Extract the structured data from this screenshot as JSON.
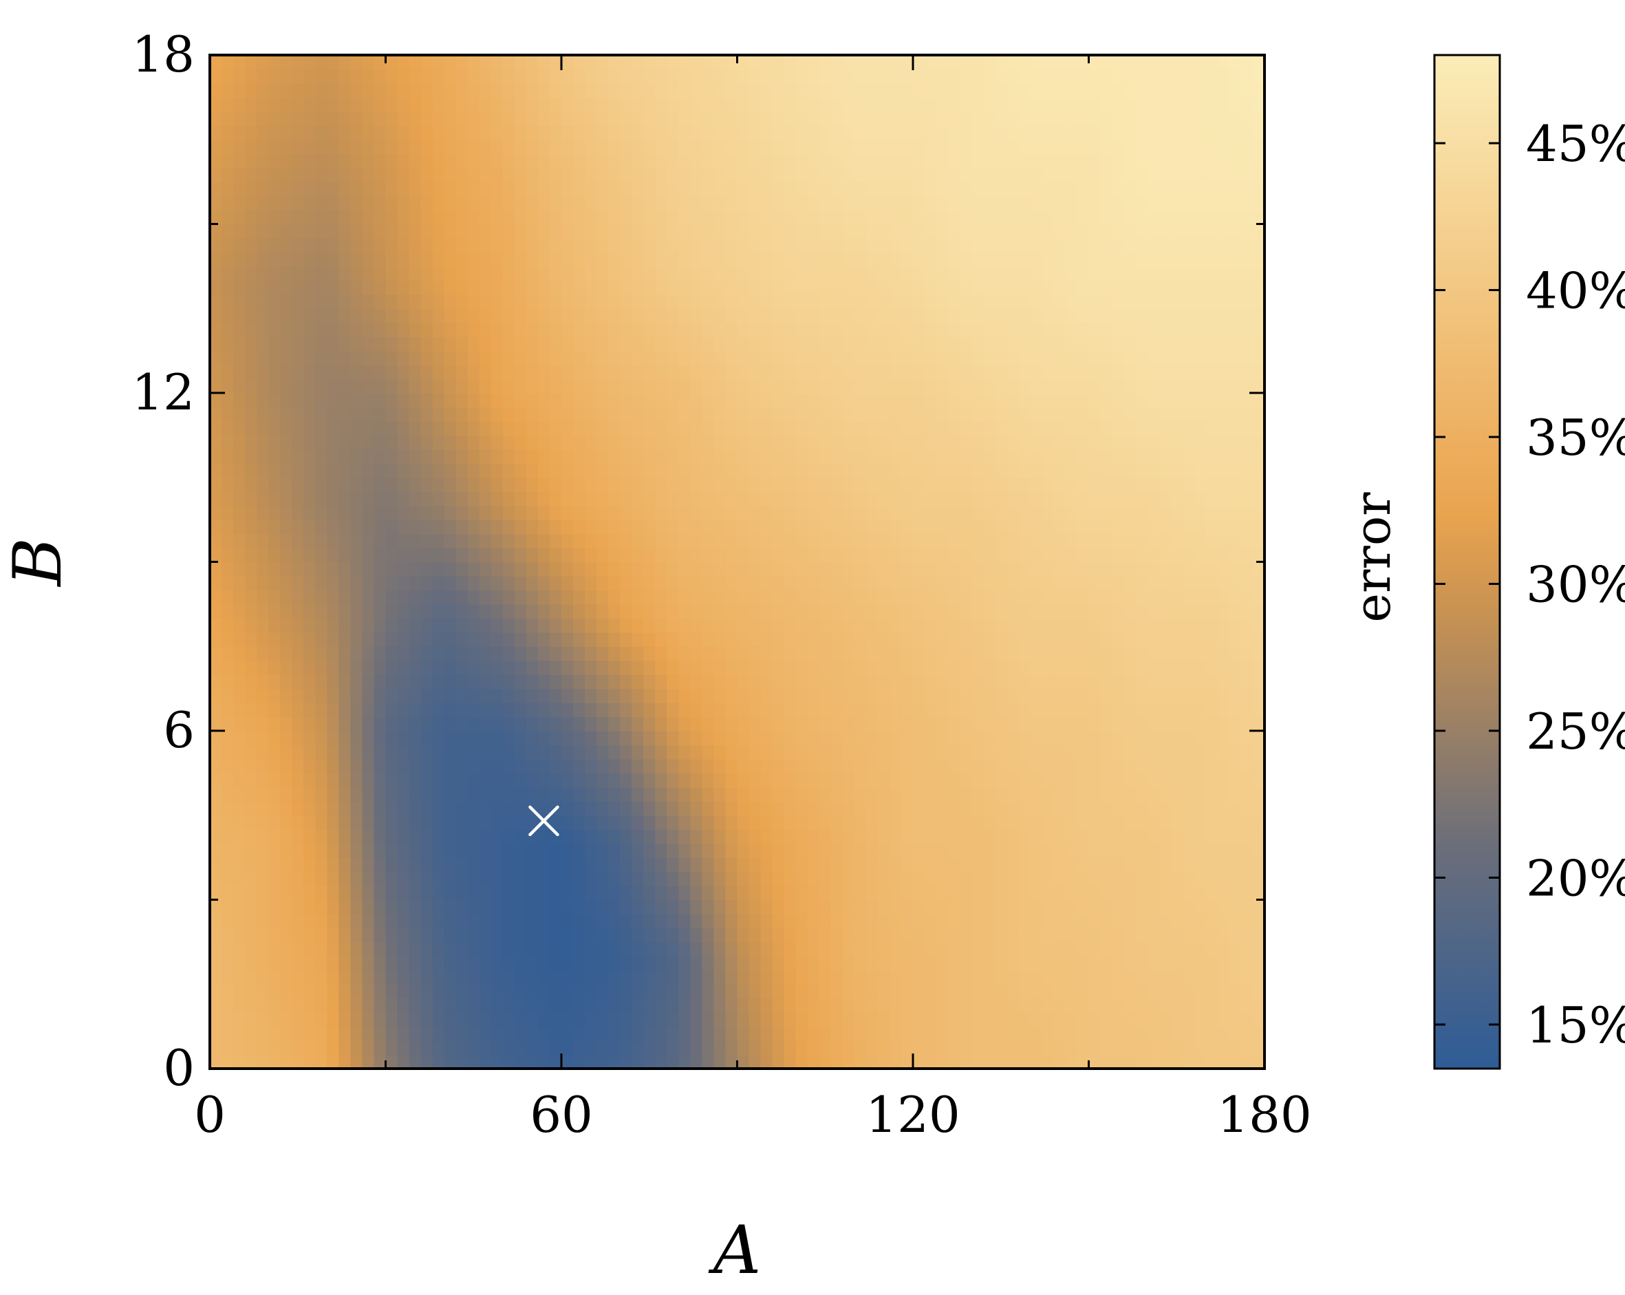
{
  "chart_data": {
    "type": "heatmap",
    "title": "",
    "xlabel": "A",
    "ylabel": "B",
    "xlim": [
      0,
      180
    ],
    "ylim": [
      0,
      18
    ],
    "x_ticks": [
      0,
      60,
      120,
      180
    ],
    "x_tick_labels": [
      "0",
      "60",
      "120",
      "180"
    ],
    "y_ticks": [
      0,
      6,
      12,
      18
    ],
    "y_tick_labels": [
      "0",
      "6",
      "12",
      "18"
    ],
    "x_minor_ticks": [
      30,
      90,
      150
    ],
    "y_minor_ticks": [
      3,
      9,
      15
    ],
    "grid": false,
    "colorbar": {
      "label": "error",
      "range": [
        13.5,
        48
      ],
      "ticks": [
        15,
        20,
        25,
        30,
        35,
        40,
        45
      ],
      "tick_labels": [
        "15%",
        "20%",
        "25%",
        "30%",
        "35%",
        "40%",
        "45%"
      ],
      "colors": {
        "low": "#2e5c97",
        "mid_low": "#6b6e7a",
        "mid": "#c89252",
        "mid_high": "#eaa44f",
        "high": "#fbecb8"
      }
    },
    "marker": {
      "shape": "x",
      "color": "#ffffff",
      "x": 57,
      "y": 4.4
    },
    "values_description_hint": "error field: low (~14%) in band from A≈30-90 at B≈0-8, rising to ~46% at high A and B",
    "grid_x": [
      0,
      10,
      20,
      30,
      40,
      50,
      60,
      70,
      80,
      90,
      100,
      110,
      120,
      130,
      140,
      150,
      160,
      170,
      180
    ],
    "grid_y": [
      0,
      2,
      4,
      6,
      8,
      10,
      12,
      14,
      16,
      18
    ],
    "values": [
      [
        37,
        36,
        34,
        24,
        18,
        16,
        15,
        16,
        19,
        26,
        32,
        35,
        37,
        38,
        38,
        39,
        39,
        40,
        40
      ],
      [
        37,
        35,
        33,
        22,
        17,
        15,
        14,
        15,
        18,
        28,
        33,
        36,
        37,
        38,
        39,
        39,
        40,
        40,
        41
      ],
      [
        36,
        35,
        31,
        20,
        16,
        15,
        14,
        17,
        24,
        31,
        34,
        36,
        38,
        38,
        39,
        40,
        40,
        41,
        41
      ],
      [
        35,
        33,
        29,
        19,
        16,
        16,
        19,
        24,
        31,
        34,
        36,
        37,
        38,
        39,
        40,
        40,
        41,
        41,
        42
      ],
      [
        33,
        30,
        27,
        22,
        19,
        22,
        27,
        32,
        35,
        36,
        37,
        38,
        39,
        40,
        41,
        41,
        42,
        42,
        43
      ],
      [
        31,
        28,
        25,
        23,
        25,
        29,
        33,
        35,
        37,
        38,
        39,
        40,
        41,
        41,
        42,
        43,
        43,
        44,
        44
      ],
      [
        30,
        27,
        25,
        25,
        29,
        33,
        35,
        37,
        38,
        40,
        41,
        42,
        42,
        43,
        44,
        44,
        45,
        45,
        45
      ],
      [
        29,
        27,
        26,
        29,
        32,
        34,
        37,
        39,
        41,
        42,
        43,
        43,
        44,
        45,
        45,
        46,
        46,
        46,
        46
      ],
      [
        31,
        29,
        28,
        30,
        33,
        35,
        38,
        40,
        42,
        43,
        44,
        45,
        45,
        46,
        46,
        46,
        47,
        47,
        47
      ],
      [
        33,
        31,
        30,
        32,
        34,
        37,
        40,
        42,
        43,
        44,
        45,
        46,
        46,
        46,
        47,
        47,
        47,
        47,
        48
      ]
    ]
  }
}
